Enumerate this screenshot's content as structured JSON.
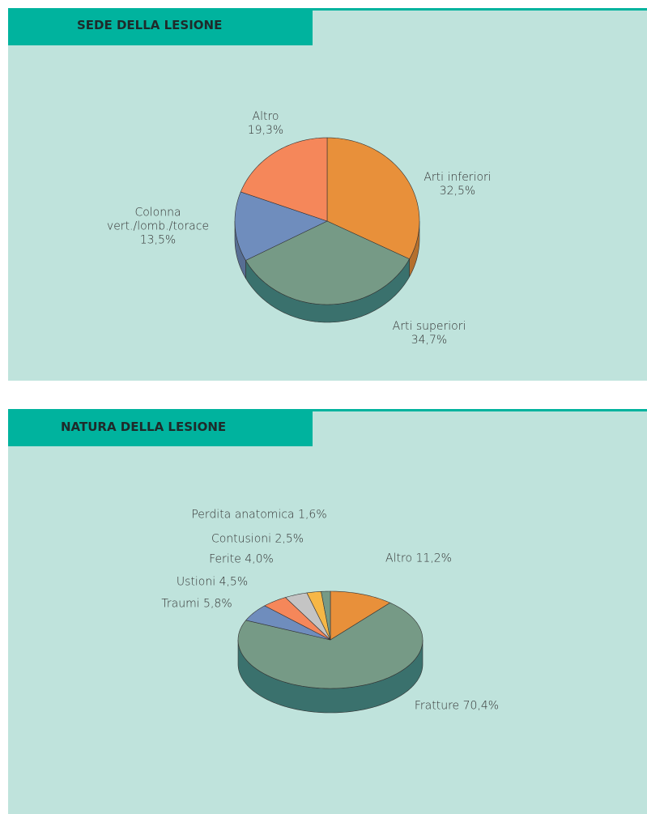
{
  "chart_data": [
    {
      "type": "pie",
      "title": "SEDE DELLA LESIONE",
      "categories": [
        "Arti inferiori",
        "Arti superiori",
        "Colonna vert./lomb./torace",
        "Altro"
      ],
      "values": [
        32.5,
        34.7,
        13.5,
        19.3
      ],
      "value_labels": [
        "32,5%",
        "34,7%",
        "13,5%",
        "19,3%"
      ],
      "colors": [
        "#e8903a",
        "#769a86",
        "#6f8dbd",
        "#f5875a"
      ]
    },
    {
      "type": "pie",
      "title": "NATURA DELLA LESIONE",
      "categories": [
        "Altro",
        "Fratture",
        "Traumi",
        "Ustioni",
        "Ferite",
        "Contusioni",
        "Perdita anatomica"
      ],
      "values": [
        11.2,
        70.4,
        5.8,
        4.5,
        4.0,
        2.5,
        1.6
      ],
      "value_labels": [
        "11,2%",
        "70,4%",
        "5,8%",
        "4,5%",
        "4,0%",
        "2,5%",
        "1,6%"
      ],
      "colors": [
        "#e8903a",
        "#769a86",
        "#6f8dbd",
        "#f5875a",
        "#c4c4c4",
        "#f6b746",
        "#769a86"
      ]
    }
  ]
}
